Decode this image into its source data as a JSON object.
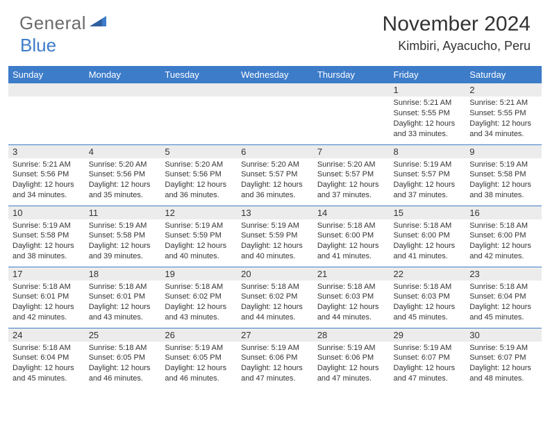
{
  "brand": {
    "text1": "General",
    "text2": "Blue",
    "text1_color": "#6b6b6b",
    "text2_color": "#3d7cc9"
  },
  "header": {
    "month_title": "November 2024",
    "location": "Kimbiri, Ayacucho, Peru"
  },
  "colors": {
    "header_bg": "#3d7cc9",
    "header_text": "#ffffff",
    "daynum_bg": "#ececec",
    "text": "#333333",
    "border": "#3d7cc9",
    "background": "#ffffff"
  },
  "typography": {
    "title_fontsize": 30,
    "location_fontsize": 18,
    "dayheader_fontsize": 13,
    "cell_fontsize": 11
  },
  "calendar": {
    "day_headers": [
      "Sunday",
      "Monday",
      "Tuesday",
      "Wednesday",
      "Thursday",
      "Friday",
      "Saturday"
    ],
    "weeks": [
      [
        {
          "num": "",
          "lines": []
        },
        {
          "num": "",
          "lines": []
        },
        {
          "num": "",
          "lines": []
        },
        {
          "num": "",
          "lines": []
        },
        {
          "num": "",
          "lines": []
        },
        {
          "num": "1",
          "lines": [
            "Sunrise: 5:21 AM",
            "Sunset: 5:55 PM",
            "Daylight: 12 hours and 33 minutes."
          ]
        },
        {
          "num": "2",
          "lines": [
            "Sunrise: 5:21 AM",
            "Sunset: 5:55 PM",
            "Daylight: 12 hours and 34 minutes."
          ]
        }
      ],
      [
        {
          "num": "3",
          "lines": [
            "Sunrise: 5:21 AM",
            "Sunset: 5:56 PM",
            "Daylight: 12 hours and 34 minutes."
          ]
        },
        {
          "num": "4",
          "lines": [
            "Sunrise: 5:20 AM",
            "Sunset: 5:56 PM",
            "Daylight: 12 hours and 35 minutes."
          ]
        },
        {
          "num": "5",
          "lines": [
            "Sunrise: 5:20 AM",
            "Sunset: 5:56 PM",
            "Daylight: 12 hours and 36 minutes."
          ]
        },
        {
          "num": "6",
          "lines": [
            "Sunrise: 5:20 AM",
            "Sunset: 5:57 PM",
            "Daylight: 12 hours and 36 minutes."
          ]
        },
        {
          "num": "7",
          "lines": [
            "Sunrise: 5:20 AM",
            "Sunset: 5:57 PM",
            "Daylight: 12 hours and 37 minutes."
          ]
        },
        {
          "num": "8",
          "lines": [
            "Sunrise: 5:19 AM",
            "Sunset: 5:57 PM",
            "Daylight: 12 hours and 37 minutes."
          ]
        },
        {
          "num": "9",
          "lines": [
            "Sunrise: 5:19 AM",
            "Sunset: 5:58 PM",
            "Daylight: 12 hours and 38 minutes."
          ]
        }
      ],
      [
        {
          "num": "10",
          "lines": [
            "Sunrise: 5:19 AM",
            "Sunset: 5:58 PM",
            "Daylight: 12 hours and 38 minutes."
          ]
        },
        {
          "num": "11",
          "lines": [
            "Sunrise: 5:19 AM",
            "Sunset: 5:58 PM",
            "Daylight: 12 hours and 39 minutes."
          ]
        },
        {
          "num": "12",
          "lines": [
            "Sunrise: 5:19 AM",
            "Sunset: 5:59 PM",
            "Daylight: 12 hours and 40 minutes."
          ]
        },
        {
          "num": "13",
          "lines": [
            "Sunrise: 5:19 AM",
            "Sunset: 5:59 PM",
            "Daylight: 12 hours and 40 minutes."
          ]
        },
        {
          "num": "14",
          "lines": [
            "Sunrise: 5:18 AM",
            "Sunset: 6:00 PM",
            "Daylight: 12 hours and 41 minutes."
          ]
        },
        {
          "num": "15",
          "lines": [
            "Sunrise: 5:18 AM",
            "Sunset: 6:00 PM",
            "Daylight: 12 hours and 41 minutes."
          ]
        },
        {
          "num": "16",
          "lines": [
            "Sunrise: 5:18 AM",
            "Sunset: 6:00 PM",
            "Daylight: 12 hours and 42 minutes."
          ]
        }
      ],
      [
        {
          "num": "17",
          "lines": [
            "Sunrise: 5:18 AM",
            "Sunset: 6:01 PM",
            "Daylight: 12 hours and 42 minutes."
          ]
        },
        {
          "num": "18",
          "lines": [
            "Sunrise: 5:18 AM",
            "Sunset: 6:01 PM",
            "Daylight: 12 hours and 43 minutes."
          ]
        },
        {
          "num": "19",
          "lines": [
            "Sunrise: 5:18 AM",
            "Sunset: 6:02 PM",
            "Daylight: 12 hours and 43 minutes."
          ]
        },
        {
          "num": "20",
          "lines": [
            "Sunrise: 5:18 AM",
            "Sunset: 6:02 PM",
            "Daylight: 12 hours and 44 minutes."
          ]
        },
        {
          "num": "21",
          "lines": [
            "Sunrise: 5:18 AM",
            "Sunset: 6:03 PM",
            "Daylight: 12 hours and 44 minutes."
          ]
        },
        {
          "num": "22",
          "lines": [
            "Sunrise: 5:18 AM",
            "Sunset: 6:03 PM",
            "Daylight: 12 hours and 45 minutes."
          ]
        },
        {
          "num": "23",
          "lines": [
            "Sunrise: 5:18 AM",
            "Sunset: 6:04 PM",
            "Daylight: 12 hours and 45 minutes."
          ]
        }
      ],
      [
        {
          "num": "24",
          "lines": [
            "Sunrise: 5:18 AM",
            "Sunset: 6:04 PM",
            "Daylight: 12 hours and 45 minutes."
          ]
        },
        {
          "num": "25",
          "lines": [
            "Sunrise: 5:18 AM",
            "Sunset: 6:05 PM",
            "Daylight: 12 hours and 46 minutes."
          ]
        },
        {
          "num": "26",
          "lines": [
            "Sunrise: 5:19 AM",
            "Sunset: 6:05 PM",
            "Daylight: 12 hours and 46 minutes."
          ]
        },
        {
          "num": "27",
          "lines": [
            "Sunrise: 5:19 AM",
            "Sunset: 6:06 PM",
            "Daylight: 12 hours and 47 minutes."
          ]
        },
        {
          "num": "28",
          "lines": [
            "Sunrise: 5:19 AM",
            "Sunset: 6:06 PM",
            "Daylight: 12 hours and 47 minutes."
          ]
        },
        {
          "num": "29",
          "lines": [
            "Sunrise: 5:19 AM",
            "Sunset: 6:07 PM",
            "Daylight: 12 hours and 47 minutes."
          ]
        },
        {
          "num": "30",
          "lines": [
            "Sunrise: 5:19 AM",
            "Sunset: 6:07 PM",
            "Daylight: 12 hours and 48 minutes."
          ]
        }
      ]
    ]
  }
}
